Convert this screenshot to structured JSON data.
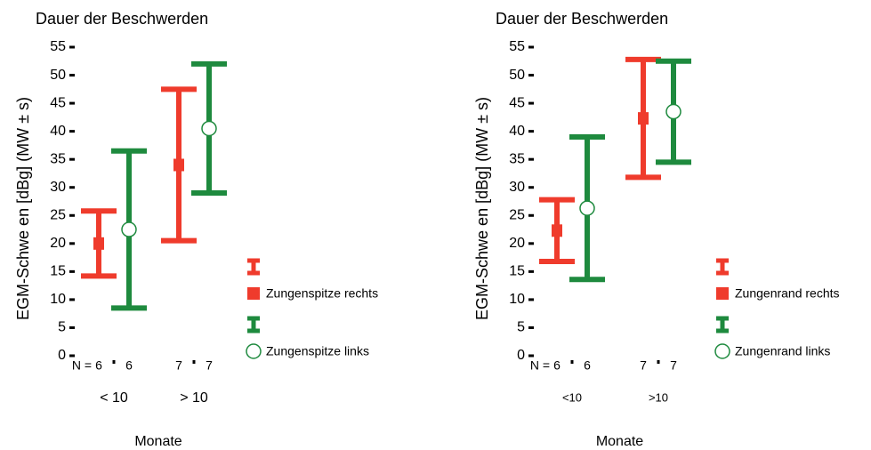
{
  "chart_data": [
    {
      "type": "errorbar",
      "title": "Dauer der Beschwerden",
      "ylabel": "EGM-Schwe en [dBg] (MW ± s)",
      "xlabel": "Monate",
      "categories": [
        "< 10",
        "> 10"
      ],
      "n_prefix": "N =",
      "ylim": [
        0,
        55
      ],
      "yticks": [
        0,
        5,
        10,
        15,
        20,
        25,
        30,
        35,
        40,
        45,
        50,
        55
      ],
      "series": [
        {
          "name": "Zungenspitze rechts",
          "color": "#ef3b2c",
          "marker": "square",
          "values": [
            20,
            34
          ],
          "errors": [
            5.8,
            13.5
          ],
          "n": [
            6,
            7
          ]
        },
        {
          "name": "Zungenspitze links",
          "color": "#1e8a3e",
          "marker": "circle",
          "values": [
            22.5,
            40.5
          ],
          "errors": [
            14,
            11.5
          ],
          "n": [
            6,
            7
          ]
        }
      ]
    },
    {
      "type": "errorbar",
      "title": "Dauer der Beschwerden",
      "ylabel": "EGM-Schwe en [dBg] (MW ± s)",
      "xlabel": "Monate",
      "categories": [
        "<10",
        ">10"
      ],
      "n_prefix": "N =",
      "ylim": [
        0,
        55
      ],
      "yticks": [
        0,
        5,
        10,
        15,
        20,
        25,
        30,
        35,
        40,
        45,
        50,
        55
      ],
      "series": [
        {
          "name": "Zungenrand rechts",
          "color": "#ef3b2c",
          "marker": "square",
          "values": [
            22.3,
            42.3
          ],
          "errors": [
            5.5,
            10.5
          ],
          "n": [
            6,
            7
          ]
        },
        {
          "name": "Zungenrand links",
          "color": "#1e8a3e",
          "marker": "circle",
          "values": [
            26.3,
            43.5
          ],
          "errors": [
            12.7,
            9
          ],
          "n": [
            6,
            7
          ]
        }
      ]
    }
  ]
}
